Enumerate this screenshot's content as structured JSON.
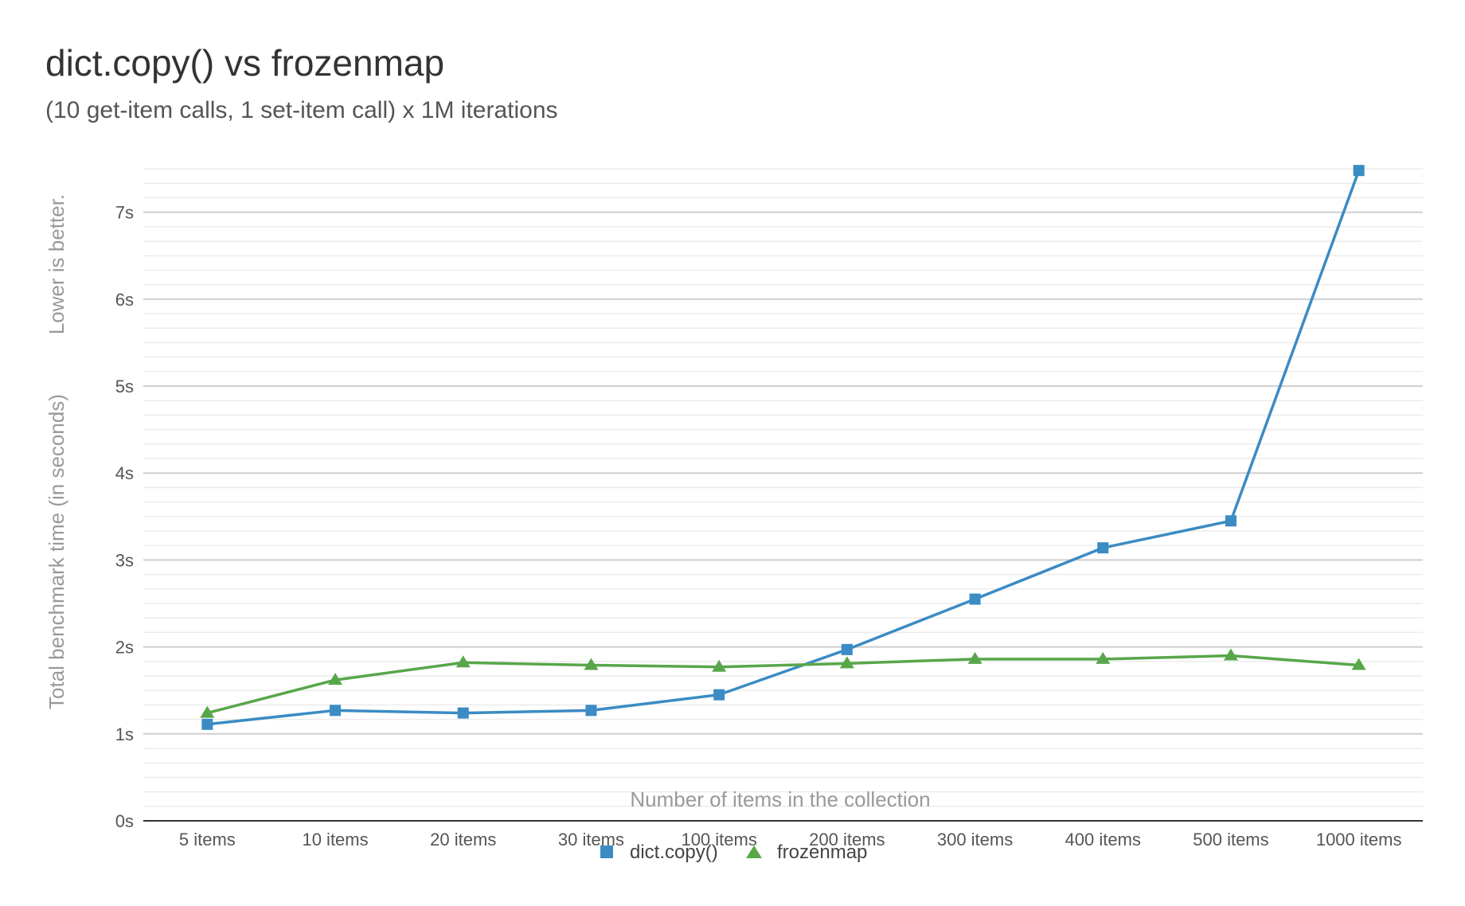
{
  "chart_data": {
    "type": "line",
    "title": "dict.copy() vs frozenmap",
    "subtitle": "(10 get-item calls, 1 set-item call) x 1M iterations",
    "xlabel": "Number of items in the collection",
    "ylabel": "Total benchmark time (in seconds)",
    "ylabel_note": "Lower is better.",
    "categories": [
      "5 items",
      "10 items",
      "20 items",
      "30 items",
      "100 items",
      "200 items",
      "300 items",
      "400 items",
      "500 items",
      "1000 items"
    ],
    "ylim": [
      0,
      7.5
    ],
    "yticks": [
      0,
      1,
      2,
      3,
      4,
      5,
      6,
      7
    ],
    "ytick_labels": [
      "0s",
      "1s",
      "2s",
      "3s",
      "4s",
      "5s",
      "6s",
      "7s"
    ],
    "grid": true,
    "legend_placement": "bottom",
    "series": [
      {
        "name": "dict.copy()",
        "marker": "square",
        "color": "#3b8bc4",
        "values": [
          1.11,
          1.27,
          1.24,
          1.27,
          1.45,
          1.97,
          2.55,
          3.14,
          3.45,
          7.48
        ]
      },
      {
        "name": "frozenmap",
        "marker": "triangle",
        "color": "#58a64a",
        "values": [
          1.24,
          1.62,
          1.82,
          1.79,
          1.77,
          1.81,
          1.86,
          1.86,
          1.9,
          1.79
        ]
      }
    ]
  }
}
